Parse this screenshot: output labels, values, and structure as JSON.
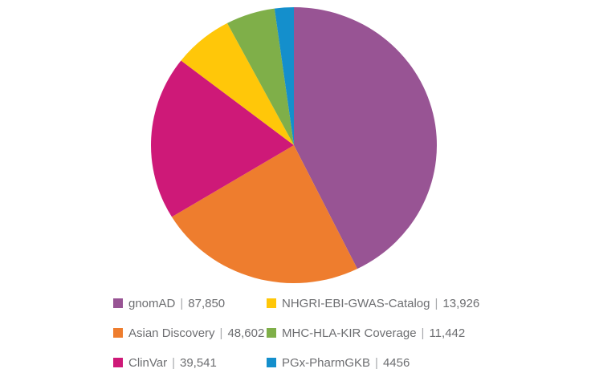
{
  "chart_data": {
    "type": "pie",
    "title": "",
    "separator": "|",
    "direction": "clockwise",
    "start_angle_deg": 0,
    "legend_position": "bottom",
    "legend_columns": 2,
    "center": {
      "x": 366,
      "y": 181
    },
    "radius_x": 178,
    "radius_y": 172,
    "series": [
      {
        "name": "gnomAD",
        "value": 87850,
        "display_value": "87,850",
        "color": "#985494"
      },
      {
        "name": "Asian Discovery",
        "value": 48602,
        "display_value": "48,602",
        "color": "#EE7D2E"
      },
      {
        "name": "ClinVar",
        "value": 39541,
        "display_value": "39,541",
        "color": "#CE1978"
      },
      {
        "name": "NHGRI-EBI-GWAS-Catalog",
        "value": 13926,
        "display_value": "13,926",
        "color": "#FFC709"
      },
      {
        "name": "MHC-HLA-KIR Coverage",
        "value": 11442,
        "display_value": "11,442",
        "color": "#7FAF49"
      },
      {
        "name": "PGx-PharmGKB",
        "value": 4456,
        "display_value": "4456",
        "color": "#148FCC"
      }
    ]
  },
  "colors": {
    "background": "#ffffff",
    "legend_text": "#6D6E71",
    "legend_separator": "#A7A9AC"
  }
}
